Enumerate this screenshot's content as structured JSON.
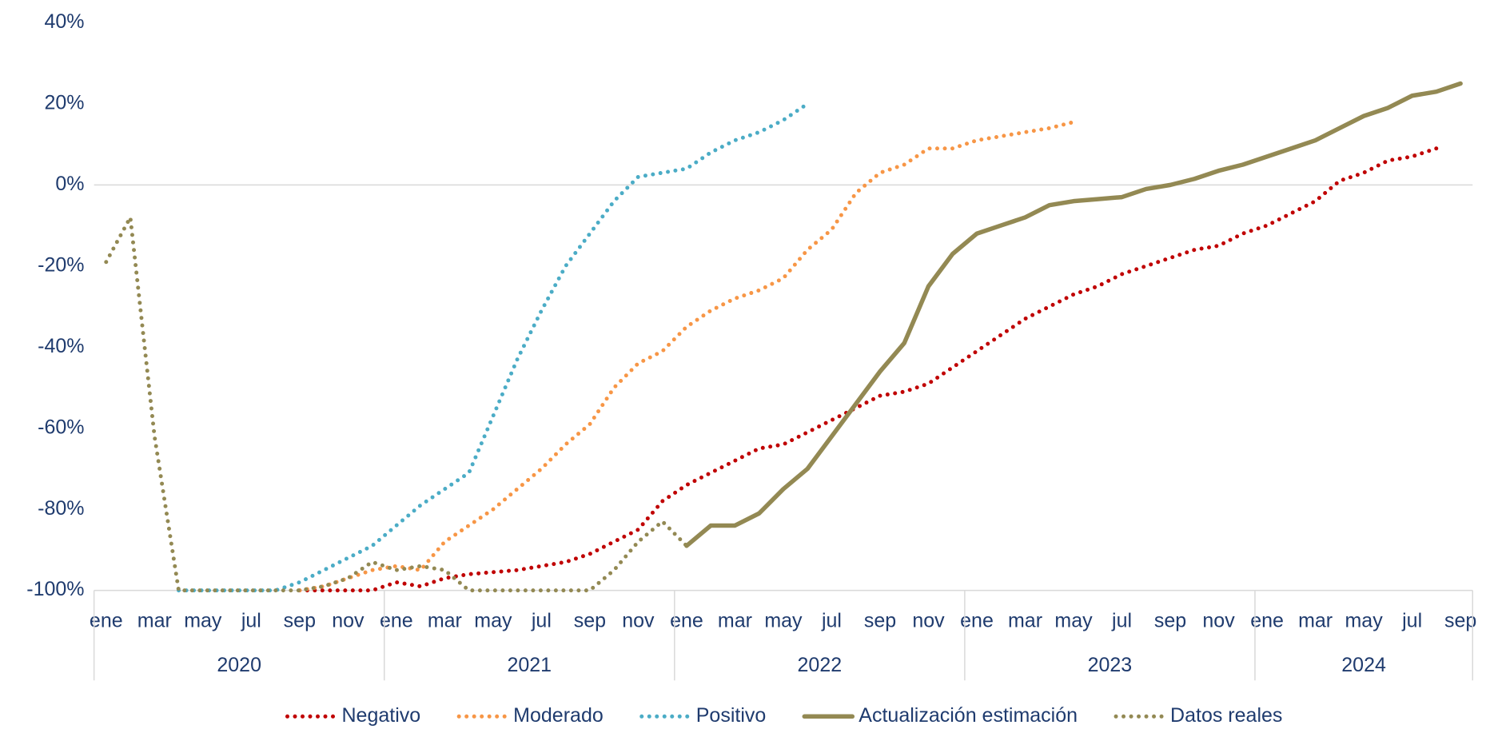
{
  "chart_data": {
    "type": "line",
    "categories": [
      "ene",
      null,
      "mar",
      null,
      "may",
      null,
      "jul",
      null,
      "sep",
      null,
      "nov",
      null,
      "ene",
      null,
      "mar",
      null,
      "may",
      null,
      "jul",
      null,
      "sep",
      null,
      "nov",
      null,
      "ene",
      null,
      "mar",
      null,
      "may",
      null,
      "jul",
      null,
      "sep",
      null,
      "nov",
      null,
      "ene",
      null,
      "mar",
      null,
      "may",
      null,
      "jul",
      null,
      "sep",
      null,
      "nov",
      null,
      "ene",
      null,
      "mar",
      null,
      "may",
      null,
      "jul",
      null,
      "sep"
    ],
    "years": [
      "2020",
      "2021",
      "2022",
      "2023",
      "2024"
    ],
    "ylim": [
      -100,
      40
    ],
    "yticks": [
      {
        "value": -100,
        "label": "-100%"
      },
      {
        "value": -80,
        "label": "-80%"
      },
      {
        "value": -60,
        "label": "-60%"
      },
      {
        "value": -40,
        "label": "-40%"
      },
      {
        "value": -20,
        "label": "-20%"
      },
      {
        "value": 0,
        "label": "0%"
      },
      {
        "value": 20,
        "label": "20%"
      },
      {
        "value": 40,
        "label": "40%"
      }
    ],
    "legend": "bottom",
    "series": [
      {
        "name": "Negativo",
        "color": "#c00000",
        "style": "dotted",
        "values": [
          null,
          null,
          null,
          null,
          null,
          null,
          null,
          null,
          -100,
          -100,
          -100,
          -100,
          -98,
          -99,
          -97,
          -96,
          -95.5,
          -95,
          -94,
          -93,
          -91,
          -88,
          -85,
          -78,
          -74,
          -71,
          -68,
          -65,
          -64,
          -61,
          -58,
          -55,
          -52,
          -51,
          -49,
          -45,
          -41,
          -37,
          -33,
          -30,
          -27,
          -25,
          -22,
          -20,
          -18,
          -16,
          -15,
          -12,
          -10,
          -7,
          -4,
          1,
          3,
          6,
          7,
          9,
          null
        ]
      },
      {
        "name": "Moderado",
        "color": "#f79646",
        "style": "dotted",
        "values": [
          null,
          null,
          null,
          null,
          null,
          null,
          null,
          null,
          -100,
          -99,
          -97,
          -95,
          -94,
          -95,
          -88,
          -84,
          -80,
          -75,
          -70,
          -64,
          -59,
          -50,
          -44,
          -41,
          -35,
          -31,
          -28,
          -26,
          -23,
          -16,
          -11,
          -2,
          3,
          5,
          9,
          9,
          11,
          12,
          13,
          14,
          15.5,
          null,
          null,
          null,
          null,
          null,
          null,
          null,
          null,
          null,
          null,
          null,
          null,
          null,
          null,
          null,
          null
        ]
      },
      {
        "name": "Positivo",
        "color": "#4bacc6",
        "style": "dotted",
        "values": [
          null,
          null,
          null,
          -100,
          -100,
          -100,
          -100,
          -100,
          -98,
          -95,
          -92,
          -89,
          -84,
          -79,
          -75,
          -71,
          -57,
          -43,
          -31,
          -20,
          -12,
          -4,
          2,
          3,
          4,
          8,
          11,
          13,
          16,
          20,
          null,
          null,
          null,
          null,
          null,
          null,
          null,
          null,
          null,
          null,
          null,
          null,
          null,
          null,
          null,
          null,
          null,
          null,
          null,
          null,
          null,
          null,
          null,
          null,
          null,
          null,
          null
        ]
      },
      {
        "name": "Actualización estimación",
        "color": "#938953",
        "style": "solid",
        "values": [
          null,
          null,
          null,
          null,
          null,
          null,
          null,
          null,
          null,
          null,
          null,
          null,
          null,
          null,
          null,
          null,
          null,
          null,
          null,
          null,
          null,
          null,
          null,
          null,
          -89,
          -84,
          -84,
          -81,
          -75,
          -70,
          -62,
          -54,
          -46,
          -39,
          -25,
          -17,
          -12,
          -10,
          -8,
          -5,
          -4,
          -3.5,
          -3,
          -1,
          0,
          1.5,
          3.5,
          5,
          7,
          9,
          11,
          14,
          17,
          19,
          22,
          23,
          25
        ]
      },
      {
        "name": "Datos reales",
        "color": "#938953",
        "style": "dotted",
        "values": [
          -19,
          -8,
          -62,
          -100,
          -100,
          -100,
          -100,
          -100,
          -100,
          -99,
          -97,
          -93,
          -95,
          -94,
          -95,
          -100,
          -100,
          -100,
          -100,
          -100,
          -100,
          -95,
          -88,
          -83,
          -89,
          null,
          null,
          null,
          null,
          null,
          null,
          null,
          null,
          null,
          null,
          null,
          null,
          null,
          null,
          null,
          null,
          null,
          null,
          null,
          null,
          null,
          null,
          null,
          null,
          null,
          null,
          null,
          null,
          null,
          null,
          null,
          null
        ]
      }
    ]
  }
}
